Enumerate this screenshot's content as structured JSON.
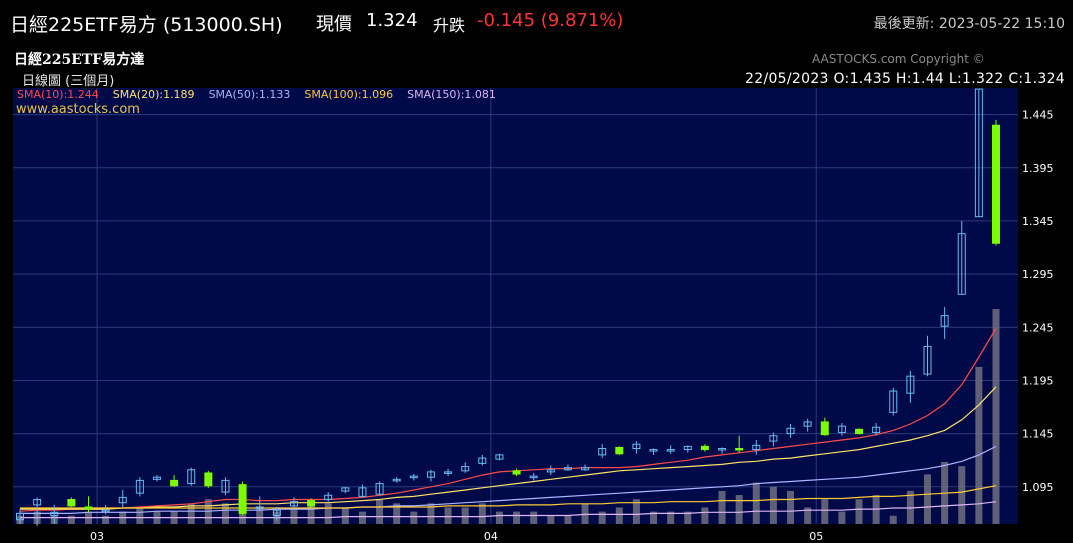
{
  "header": {
    "name": "日經225ETF易方 (513000.SH)",
    "price_label": "現價",
    "price": "1.324",
    "change_label": "升跌",
    "change": "-0.145 (9.871%)",
    "updated": "最後更新: 2023-05-22 15:10"
  },
  "chart_header": {
    "name": "日經225ETF易方達",
    "period": "日線圖 (三個月)",
    "copyright": "AASTOCKS.com Copyright ©",
    "ohlc": "22/05/2023   O:1.435   H:1.44   L:1.322   C:1.324",
    "website": "www.aastocks.com"
  },
  "colors": {
    "up_candle": "#67b8f0",
    "down_candle": "#7cfc00",
    "volume": "#707080",
    "plot_bg": "#000a48",
    "grid": "#2a3a7a",
    "change_negative": "#ff3333"
  },
  "chart_data": {
    "type": "candlestick",
    "ylim": [
      1.06,
      1.47
    ],
    "y_ticks": [
      "1.445",
      "1.395",
      "1.345",
      "1.295",
      "1.245",
      "1.195",
      "1.145",
      "1.095"
    ],
    "x_ticks": [
      {
        "label": "03",
        "index": 4
      },
      {
        "label": "04",
        "index": 27
      },
      {
        "label": "05",
        "index": 46
      }
    ],
    "sma_legend": [
      {
        "label": "SMA(10):1.244",
        "color": "#ff4a4a"
      },
      {
        "label": "SMA(20):1.189",
        "color": "#ffe066"
      },
      {
        "label": "SMA(50):1.133",
        "color": "#aab4ff"
      },
      {
        "label": "SMA(100):1.096",
        "color": "#ffc933"
      },
      {
        "label": "SMA(150):1.081",
        "color": "#e0b4f0"
      }
    ],
    "candles": [
      {
        "o": 1.064,
        "h": 1.074,
        "l": 1.06,
        "c": 1.07
      },
      {
        "o": 1.078,
        "h": 1.085,
        "l": 1.058,
        "c": 1.083
      },
      {
        "o": 1.068,
        "h": 1.078,
        "l": 1.06,
        "c": 1.071
      },
      {
        "o": 1.083,
        "h": 1.085,
        "l": 1.076,
        "c": 1.077
      },
      {
        "o": 1.076,
        "h": 1.086,
        "l": 1.071,
        "c": 1.074
      },
      {
        "o": 1.073,
        "h": 1.078,
        "l": 1.069,
        "c": 1.073
      },
      {
        "o": 1.08,
        "h": 1.092,
        "l": 1.076,
        "c": 1.085
      },
      {
        "o": 1.089,
        "h": 1.104,
        "l": 1.086,
        "c": 1.101
      },
      {
        "o": 1.102,
        "h": 1.106,
        "l": 1.1,
        "c": 1.104
      },
      {
        "o": 1.101,
        "h": 1.106,
        "l": 1.095,
        "c": 1.096
      },
      {
        "o": 1.098,
        "h": 1.113,
        "l": 1.096,
        "c": 1.111
      },
      {
        "o": 1.108,
        "h": 1.11,
        "l": 1.094,
        "c": 1.096
      },
      {
        "o": 1.09,
        "h": 1.104,
        "l": 1.087,
        "c": 1.101
      },
      {
        "o": 1.097,
        "h": 1.1,
        "l": 1.068,
        "c": 1.07
      },
      {
        "o": 1.076,
        "h": 1.086,
        "l": 1.073,
        "c": 1.076
      },
      {
        "o": 1.068,
        "h": 1.076,
        "l": 1.063,
        "c": 1.073
      },
      {
        "o": 1.077,
        "h": 1.085,
        "l": 1.075,
        "c": 1.081
      },
      {
        "o": 1.082,
        "h": 1.084,
        "l": 1.075,
        "c": 1.077
      },
      {
        "o": 1.083,
        "h": 1.09,
        "l": 1.081,
        "c": 1.087
      },
      {
        "o": 1.091,
        "h": 1.095,
        "l": 1.089,
        "c": 1.094
      },
      {
        "o": 1.086,
        "h": 1.097,
        "l": 1.085,
        "c": 1.094
      },
      {
        "o": 1.088,
        "h": 1.1,
        "l": 1.087,
        "c": 1.098
      },
      {
        "o": 1.101,
        "h": 1.104,
        "l": 1.099,
        "c": 1.102
      },
      {
        "o": 1.104,
        "h": 1.107,
        "l": 1.101,
        "c": 1.105
      },
      {
        "o": 1.104,
        "h": 1.111,
        "l": 1.1,
        "c": 1.109
      },
      {
        "o": 1.109,
        "h": 1.112,
        "l": 1.105,
        "c": 1.109
      },
      {
        "o": 1.11,
        "h": 1.118,
        "l": 1.108,
        "c": 1.114
      },
      {
        "o": 1.117,
        "h": 1.125,
        "l": 1.115,
        "c": 1.122
      },
      {
        "o": 1.121,
        "h": 1.126,
        "l": 1.12,
        "c": 1.125
      },
      {
        "o": 1.11,
        "h": 1.112,
        "l": 1.105,
        "c": 1.107
      },
      {
        "o": 1.104,
        "h": 1.108,
        "l": 1.101,
        "c": 1.105
      },
      {
        "o": 1.109,
        "h": 1.115,
        "l": 1.106,
        "c": 1.111
      },
      {
        "o": 1.111,
        "h": 1.116,
        "l": 1.11,
        "c": 1.113
      },
      {
        "o": 1.111,
        "h": 1.116,
        "l": 1.11,
        "c": 1.113
      },
      {
        "o": 1.125,
        "h": 1.135,
        "l": 1.122,
        "c": 1.131
      },
      {
        "o": 1.132,
        "h": 1.133,
        "l": 1.125,
        "c": 1.126
      },
      {
        "o": 1.131,
        "h": 1.138,
        "l": 1.126,
        "c": 1.135
      },
      {
        "o": 1.129,
        "h": 1.131,
        "l": 1.125,
        "c": 1.13
      },
      {
        "o": 1.129,
        "h": 1.134,
        "l": 1.126,
        "c": 1.13
      },
      {
        "o": 1.13,
        "h": 1.134,
        "l": 1.127,
        "c": 1.133
      },
      {
        "o": 1.133,
        "h": 1.135,
        "l": 1.128,
        "c": 1.13
      },
      {
        "o": 1.13,
        "h": 1.132,
        "l": 1.126,
        "c": 1.131
      },
      {
        "o": 1.131,
        "h": 1.143,
        "l": 1.127,
        "c": 1.13
      },
      {
        "o": 1.13,
        "h": 1.139,
        "l": 1.125,
        "c": 1.134
      },
      {
        "o": 1.138,
        "h": 1.146,
        "l": 1.133,
        "c": 1.143
      },
      {
        "o": 1.145,
        "h": 1.154,
        "l": 1.141,
        "c": 1.15
      },
      {
        "o": 1.152,
        "h": 1.159,
        "l": 1.147,
        "c": 1.156
      },
      {
        "o": 1.156,
        "h": 1.16,
        "l": 1.143,
        "c": 1.144
      },
      {
        "o": 1.146,
        "h": 1.155,
        "l": 1.143,
        "c": 1.152
      },
      {
        "o": 1.149,
        "h": 1.15,
        "l": 1.144,
        "c": 1.145
      },
      {
        "o": 1.146,
        "h": 1.155,
        "l": 1.143,
        "c": 1.151
      },
      {
        "o": 1.165,
        "h": 1.188,
        "l": 1.162,
        "c": 1.185
      },
      {
        "o": 1.183,
        "h": 1.204,
        "l": 1.174,
        "c": 1.199
      },
      {
        "o": 1.201,
        "h": 1.237,
        "l": 1.199,
        "c": 1.227
      },
      {
        "o": 1.246,
        "h": 1.264,
        "l": 1.234,
        "c": 1.256
      },
      {
        "o": 1.276,
        "h": 1.345,
        "l": 1.276,
        "c": 1.333
      },
      {
        "o": 1.349,
        "h": 1.469,
        "l": 1.349,
        "c": 1.469
      },
      {
        "o": 1.435,
        "h": 1.44,
        "l": 1.322,
        "c": 1.324
      }
    ],
    "volume": [
      2,
      3,
      2,
      2,
      3,
      2,
      3,
      4,
      3,
      3,
      5,
      6,
      5,
      7,
      4,
      3,
      4,
      5,
      5,
      4,
      3,
      6,
      5,
      3,
      5,
      4,
      4,
      5,
      3,
      3,
      3,
      2,
      2,
      5,
      3,
      4,
      6,
      3,
      3,
      3,
      4,
      8,
      7,
      10,
      9,
      8,
      4,
      6,
      3,
      6,
      7,
      2,
      8,
      12,
      15,
      14,
      38,
      52
    ],
    "volume_max": 52,
    "sma": [
      {
        "name": "SMA(10)",
        "color": "#ff4a4a",
        "values": [
          1.072,
          1.073,
          1.073,
          1.074,
          1.074,
          1.074,
          1.075,
          1.076,
          1.077,
          1.078,
          1.079,
          1.081,
          1.083,
          1.083,
          1.082,
          1.082,
          1.083,
          1.083,
          1.083,
          1.084,
          1.085,
          1.087,
          1.089,
          1.092,
          1.095,
          1.098,
          1.102,
          1.106,
          1.109,
          1.11,
          1.111,
          1.112,
          1.112,
          1.113,
          1.113,
          1.113,
          1.114,
          1.116,
          1.118,
          1.12,
          1.123,
          1.125,
          1.127,
          1.129,
          1.131,
          1.133,
          1.135,
          1.137,
          1.139,
          1.141,
          1.144,
          1.148,
          1.154,
          1.162,
          1.173,
          1.191,
          1.217,
          1.244
        ]
      },
      {
        "name": "SMA(20)",
        "color": "#ffe066",
        "values": [
          1.074,
          1.074,
          1.074,
          1.074,
          1.074,
          1.074,
          1.075,
          1.075,
          1.076,
          1.076,
          1.077,
          1.077,
          1.078,
          1.079,
          1.079,
          1.079,
          1.08,
          1.08,
          1.08,
          1.081,
          1.082,
          1.083,
          1.085,
          1.086,
          1.088,
          1.09,
          1.092,
          1.094,
          1.096,
          1.098,
          1.1,
          1.102,
          1.104,
          1.106,
          1.108,
          1.11,
          1.111,
          1.112,
          1.113,
          1.114,
          1.115,
          1.116,
          1.118,
          1.119,
          1.121,
          1.122,
          1.124,
          1.126,
          1.128,
          1.13,
          1.133,
          1.136,
          1.139,
          1.143,
          1.148,
          1.158,
          1.172,
          1.189
        ]
      },
      {
        "name": "SMA(50)",
        "color": "#aab4ff",
        "values": [
          1.07,
          1.07,
          1.07,
          1.07,
          1.071,
          1.071,
          1.071,
          1.071,
          1.072,
          1.072,
          1.072,
          1.072,
          1.073,
          1.073,
          1.073,
          1.074,
          1.074,
          1.074,
          1.075,
          1.075,
          1.076,
          1.076,
          1.077,
          1.077,
          1.078,
          1.079,
          1.08,
          1.081,
          1.082,
          1.083,
          1.084,
          1.085,
          1.086,
          1.087,
          1.088,
          1.089,
          1.09,
          1.091,
          1.092,
          1.093,
          1.094,
          1.095,
          1.096,
          1.098,
          1.099,
          1.1,
          1.101,
          1.102,
          1.103,
          1.104,
          1.106,
          1.108,
          1.11,
          1.112,
          1.115,
          1.119,
          1.125,
          1.133
        ]
      },
      {
        "name": "SMA(100)",
        "color": "#ffc933",
        "values": [
          1.075,
          1.075,
          1.075,
          1.075,
          1.075,
          1.075,
          1.075,
          1.075,
          1.075,
          1.075,
          1.075,
          1.075,
          1.075,
          1.075,
          1.075,
          1.075,
          1.075,
          1.075,
          1.075,
          1.075,
          1.076,
          1.076,
          1.076,
          1.076,
          1.076,
          1.077,
          1.077,
          1.077,
          1.077,
          1.078,
          1.078,
          1.078,
          1.079,
          1.079,
          1.079,
          1.08,
          1.08,
          1.08,
          1.081,
          1.081,
          1.081,
          1.082,
          1.082,
          1.082,
          1.083,
          1.083,
          1.084,
          1.084,
          1.084,
          1.085,
          1.086,
          1.086,
          1.087,
          1.088,
          1.089,
          1.09,
          1.093,
          1.096
        ]
      },
      {
        "name": "SMA(150)",
        "color": "#e0b4f0",
        "values": [
          1.066,
          1.066,
          1.066,
          1.066,
          1.066,
          1.066,
          1.066,
          1.066,
          1.066,
          1.066,
          1.066,
          1.066,
          1.066,
          1.066,
          1.066,
          1.066,
          1.066,
          1.066,
          1.066,
          1.067,
          1.067,
          1.067,
          1.067,
          1.067,
          1.067,
          1.067,
          1.067,
          1.067,
          1.068,
          1.068,
          1.068,
          1.068,
          1.068,
          1.069,
          1.069,
          1.069,
          1.069,
          1.07,
          1.07,
          1.07,
          1.071,
          1.071,
          1.071,
          1.072,
          1.072,
          1.072,
          1.073,
          1.073,
          1.073,
          1.074,
          1.074,
          1.075,
          1.075,
          1.076,
          1.077,
          1.078,
          1.079,
          1.081
        ]
      }
    ]
  }
}
